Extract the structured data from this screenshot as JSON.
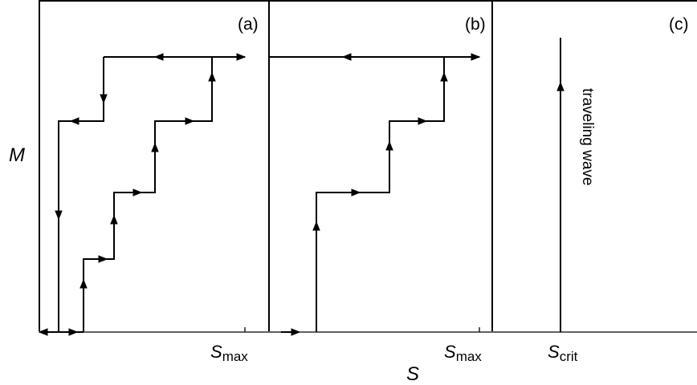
{
  "figure": {
    "y_axis_label": "M",
    "x_axis_label": "S",
    "panels": [
      {
        "id": "a",
        "label": "(a)",
        "tick": {
          "var": "S",
          "sub": "max"
        }
      },
      {
        "id": "b",
        "label": "(b)",
        "tick": {
          "var": "S",
          "sub": "max"
        }
      },
      {
        "id": "c",
        "label": "(c)",
        "tick": {
          "var": "S",
          "sub": "crit"
        },
        "annotation": "traveling wave"
      }
    ]
  }
}
